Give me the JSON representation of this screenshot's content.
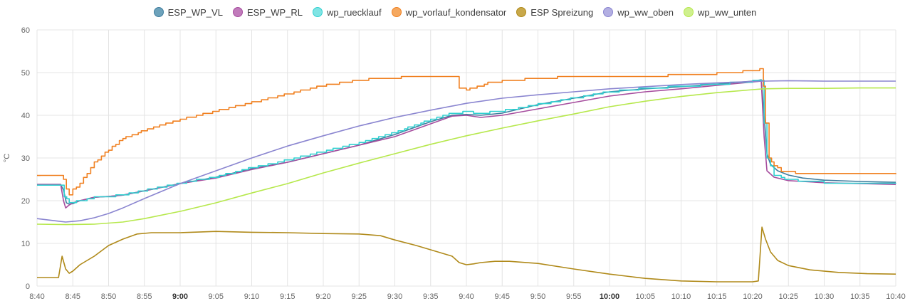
{
  "chart_data": {
    "type": "line",
    "title": "",
    "xlabel": "",
    "ylabel": "°C",
    "ylim": [
      0,
      60
    ],
    "yticks": [
      0,
      10,
      20,
      30,
      40,
      50,
      60
    ],
    "xlim": [
      "8:40",
      "10:40"
    ],
    "xticks": [
      {
        "label": "8:40",
        "minutes": 0
      },
      {
        "label": "8:45",
        "minutes": 5
      },
      {
        "label": "8:50",
        "minutes": 10
      },
      {
        "label": "8:55",
        "minutes": 15
      },
      {
        "label": "9:00",
        "minutes": 20,
        "bold": true
      },
      {
        "label": "9:05",
        "minutes": 25
      },
      {
        "label": "9:10",
        "minutes": 30
      },
      {
        "label": "9:15",
        "minutes": 35
      },
      {
        "label": "9:20",
        "minutes": 40
      },
      {
        "label": "9:25",
        "minutes": 45
      },
      {
        "label": "9:30",
        "minutes": 50
      },
      {
        "label": "9:35",
        "minutes": 55
      },
      {
        "label": "9:40",
        "minutes": 60
      },
      {
        "label": "9:45",
        "minutes": 65
      },
      {
        "label": "9:50",
        "minutes": 70
      },
      {
        "label": "9:55",
        "minutes": 75
      },
      {
        "label": "10:00",
        "minutes": 80,
        "bold": true
      },
      {
        "label": "10:05",
        "minutes": 85
      },
      {
        "label": "10:10",
        "minutes": 90
      },
      {
        "label": "10:15",
        "minutes": 95
      },
      {
        "label": "10:20",
        "minutes": 100
      },
      {
        "label": "10:25",
        "minutes": 105
      },
      {
        "label": "10:30",
        "minutes": 110
      },
      {
        "label": "10:35",
        "minutes": 115
      },
      {
        "label": "10:40",
        "minutes": 120
      }
    ],
    "grid": true,
    "legend_position": "top-center",
    "series": [
      {
        "name": "ESP_WP_VL",
        "color": "#3f7d9e",
        "fill": "#6da2bb",
        "step": false,
        "points": [
          [
            0,
            23.8
          ],
          [
            3.3,
            23.8
          ],
          [
            3.7,
            22.5
          ],
          [
            4.1,
            19.5
          ],
          [
            4.5,
            19.2
          ],
          [
            5,
            19.3
          ],
          [
            6,
            20
          ],
          [
            8,
            20.8
          ],
          [
            10,
            21
          ],
          [
            12,
            21.3
          ],
          [
            15,
            22.3
          ],
          [
            20,
            24
          ],
          [
            25,
            25.5
          ],
          [
            30,
            27.5
          ],
          [
            35,
            29
          ],
          [
            40,
            31
          ],
          [
            45,
            33
          ],
          [
            50,
            35.5
          ],
          [
            55,
            38.5
          ],
          [
            58,
            40
          ],
          [
            60,
            40.2
          ],
          [
            62,
            40
          ],
          [
            65,
            40.5
          ],
          [
            70,
            42.5
          ],
          [
            75,
            44
          ],
          [
            80,
            45.5
          ],
          [
            85,
            46.2
          ],
          [
            90,
            46.7
          ],
          [
            95,
            47.3
          ],
          [
            100,
            48
          ],
          [
            101.2,
            48.3
          ],
          [
            101.6,
            40
          ],
          [
            102,
            31
          ],
          [
            102.5,
            28.5
          ],
          [
            103.5,
            27
          ],
          [
            105,
            26
          ],
          [
            107,
            25.3
          ],
          [
            110,
            24.8
          ],
          [
            115,
            24.5
          ],
          [
            120,
            24.3
          ]
        ]
      },
      {
        "name": "ESP_WP_RL",
        "color": "#a64d9e",
        "fill": "#c17bbb",
        "step": false,
        "points": [
          [
            0,
            23.8
          ],
          [
            3.3,
            23.8
          ],
          [
            3.7,
            20
          ],
          [
            4,
            18.3
          ],
          [
            4.5,
            19
          ],
          [
            5,
            19.5
          ],
          [
            6,
            20
          ],
          [
            8,
            20.8
          ],
          [
            10,
            21
          ],
          [
            12,
            21.3
          ],
          [
            15,
            22.3
          ],
          [
            20,
            24
          ],
          [
            25,
            25.3
          ],
          [
            30,
            27.3
          ],
          [
            35,
            29
          ],
          [
            40,
            31
          ],
          [
            45,
            33
          ],
          [
            50,
            35
          ],
          [
            55,
            38
          ],
          [
            58,
            39.8
          ],
          [
            60,
            40
          ],
          [
            62,
            39.5
          ],
          [
            65,
            40
          ],
          [
            70,
            41.5
          ],
          [
            75,
            43
          ],
          [
            80,
            44.5
          ],
          [
            85,
            45.5
          ],
          [
            90,
            46.2
          ],
          [
            95,
            47
          ],
          [
            100,
            47.8
          ],
          [
            101.2,
            48
          ],
          [
            101.6,
            35
          ],
          [
            102,
            27
          ],
          [
            103,
            25.5
          ],
          [
            105,
            24.7
          ],
          [
            110,
            24.2
          ],
          [
            115,
            24
          ],
          [
            120,
            23.8
          ]
        ]
      },
      {
        "name": "wp_ruecklauf",
        "color": "#30d0d0",
        "fill": "#80e4e4",
        "step": true,
        "points": [
          [
            0,
            23.8
          ],
          [
            3.3,
            23.8
          ],
          [
            3.8,
            21
          ],
          [
            4.5,
            19.5
          ],
          [
            5,
            19.6
          ],
          [
            6,
            20
          ],
          [
            8,
            20.7
          ],
          [
            10,
            21
          ],
          [
            12,
            21.4
          ],
          [
            15,
            22.4
          ],
          [
            20,
            24.1
          ],
          [
            25,
            25.6
          ],
          [
            30,
            27.7
          ],
          [
            35,
            29.5
          ],
          [
            40,
            31.5
          ],
          [
            45,
            33.5
          ],
          [
            50,
            36
          ],
          [
            55,
            39
          ],
          [
            58,
            40.5
          ],
          [
            60,
            40.8
          ],
          [
            62,
            40.5
          ],
          [
            65,
            41
          ],
          [
            70,
            42.5
          ],
          [
            75,
            44
          ],
          [
            80,
            45.5
          ],
          [
            85,
            46.3
          ],
          [
            90,
            46.8
          ],
          [
            95,
            47.3
          ],
          [
            100,
            48
          ],
          [
            101.2,
            48.3
          ],
          [
            101.6,
            38
          ],
          [
            102,
            30
          ],
          [
            103,
            26
          ],
          [
            105,
            24.9
          ],
          [
            110,
            24.3
          ],
          [
            115,
            24.2
          ],
          [
            120,
            24
          ]
        ]
      },
      {
        "name": "wp_vorlauf_kondensator",
        "color": "#f08020",
        "fill": "#f5a860",
        "step": true,
        "points": [
          [
            0,
            25.9
          ],
          [
            3.3,
            26
          ],
          [
            3.7,
            25
          ],
          [
            4.1,
            22.5
          ],
          [
            4.5,
            21.5
          ],
          [
            5,
            22.5
          ],
          [
            6,
            24
          ],
          [
            7,
            26.5
          ],
          [
            8,
            29
          ],
          [
            10,
            32
          ],
          [
            12,
            34.5
          ],
          [
            15,
            36.5
          ],
          [
            18,
            38
          ],
          [
            20,
            39
          ],
          [
            25,
            41
          ],
          [
            30,
            43
          ],
          [
            35,
            45
          ],
          [
            40,
            47
          ],
          [
            45,
            48.3
          ],
          [
            50,
            48.8
          ],
          [
            55,
            49.2
          ],
          [
            58.5,
            49.2
          ],
          [
            59,
            46.5
          ],
          [
            60,
            46
          ],
          [
            61,
            46.3
          ],
          [
            63,
            47.5
          ],
          [
            65,
            48
          ],
          [
            70,
            48.7
          ],
          [
            75,
            49
          ],
          [
            80,
            49.3
          ],
          [
            85,
            49.2
          ],
          [
            90,
            49.4
          ],
          [
            95,
            49.8
          ],
          [
            100,
            50.4
          ],
          [
            101,
            50.8
          ],
          [
            101.5,
            47
          ],
          [
            101.8,
            38
          ],
          [
            102.3,
            30
          ],
          [
            103,
            28
          ],
          [
            104,
            27
          ],
          [
            106,
            26.5
          ],
          [
            110,
            26.3
          ],
          [
            115,
            26.2
          ],
          [
            120,
            26.2
          ]
        ]
      },
      {
        "name": "ESP Spreizung",
        "color": "#b08a1a",
        "fill": "#c8a84a",
        "step": false,
        "points": [
          [
            0,
            2
          ],
          [
            3,
            2
          ],
          [
            3.5,
            7
          ],
          [
            4,
            4
          ],
          [
            4.5,
            3
          ],
          [
            5,
            3.5
          ],
          [
            6,
            5
          ],
          [
            8,
            7
          ],
          [
            10,
            9.5
          ],
          [
            12,
            11
          ],
          [
            14,
            12.2
          ],
          [
            16,
            12.5
          ],
          [
            20,
            12.5
          ],
          [
            25,
            12.8
          ],
          [
            30,
            12.6
          ],
          [
            35,
            12.5
          ],
          [
            40,
            12.3
          ],
          [
            45,
            12.2
          ],
          [
            48,
            11.8
          ],
          [
            50,
            10.8
          ],
          [
            53,
            9.5
          ],
          [
            55,
            8.5
          ],
          [
            58,
            7
          ],
          [
            59,
            5.5
          ],
          [
            60,
            5
          ],
          [
            61,
            5.2
          ],
          [
            62,
            5.5
          ],
          [
            64,
            5.8
          ],
          [
            66,
            5.8
          ],
          [
            70,
            5.3
          ],
          [
            75,
            4
          ],
          [
            80,
            2.8
          ],
          [
            85,
            1.8
          ],
          [
            90,
            1.2
          ],
          [
            95,
            1
          ],
          [
            100,
            1
          ],
          [
            100.8,
            1.2
          ],
          [
            101.3,
            13.8
          ],
          [
            101.8,
            11
          ],
          [
            102.5,
            8
          ],
          [
            103.5,
            6
          ],
          [
            105,
            4.8
          ],
          [
            108,
            3.8
          ],
          [
            112,
            3.2
          ],
          [
            116,
            2.9
          ],
          [
            120,
            2.8
          ]
        ]
      },
      {
        "name": "wp_ww_oben",
        "color": "#8a85d0",
        "fill": "#b3afe2",
        "step": false,
        "points": [
          [
            0,
            15.8
          ],
          [
            3,
            15.2
          ],
          [
            4,
            15
          ],
          [
            6,
            15.3
          ],
          [
            8,
            16
          ],
          [
            10,
            17
          ],
          [
            12,
            18.3
          ],
          [
            15,
            20.5
          ],
          [
            20,
            24
          ],
          [
            25,
            27
          ],
          [
            30,
            30
          ],
          [
            35,
            32.8
          ],
          [
            40,
            35.2
          ],
          [
            45,
            37.5
          ],
          [
            50,
            39.5
          ],
          [
            55,
            41.2
          ],
          [
            60,
            42.8
          ],
          [
            65,
            44
          ],
          [
            70,
            44.8
          ],
          [
            75,
            45.5
          ],
          [
            80,
            46.2
          ],
          [
            85,
            46.7
          ],
          [
            90,
            47.2
          ],
          [
            95,
            47.6
          ],
          [
            100,
            47.9
          ],
          [
            101.5,
            48
          ],
          [
            105,
            48.1
          ],
          [
            110,
            48
          ],
          [
            115,
            48
          ],
          [
            120,
            48
          ]
        ]
      },
      {
        "name": "wp_ww_unten",
        "color": "#b6e84c",
        "fill": "#cff08e",
        "step": false,
        "points": [
          [
            0,
            14.5
          ],
          [
            4,
            14.4
          ],
          [
            8,
            14.5
          ],
          [
            12,
            15
          ],
          [
            15,
            15.8
          ],
          [
            20,
            17.5
          ],
          [
            25,
            19.5
          ],
          [
            30,
            21.8
          ],
          [
            35,
            24
          ],
          [
            40,
            26.5
          ],
          [
            45,
            28.8
          ],
          [
            50,
            31
          ],
          [
            55,
            33.2
          ],
          [
            60,
            35.2
          ],
          [
            65,
            37
          ],
          [
            70,
            38.7
          ],
          [
            75,
            40.3
          ],
          [
            80,
            42
          ],
          [
            85,
            43.3
          ],
          [
            90,
            44.4
          ],
          [
            95,
            45.3
          ],
          [
            100,
            46
          ],
          [
            101.5,
            46.2
          ],
          [
            105,
            46.3
          ],
          [
            110,
            46.3
          ],
          [
            115,
            46.4
          ],
          [
            120,
            46.4
          ]
        ]
      }
    ]
  }
}
